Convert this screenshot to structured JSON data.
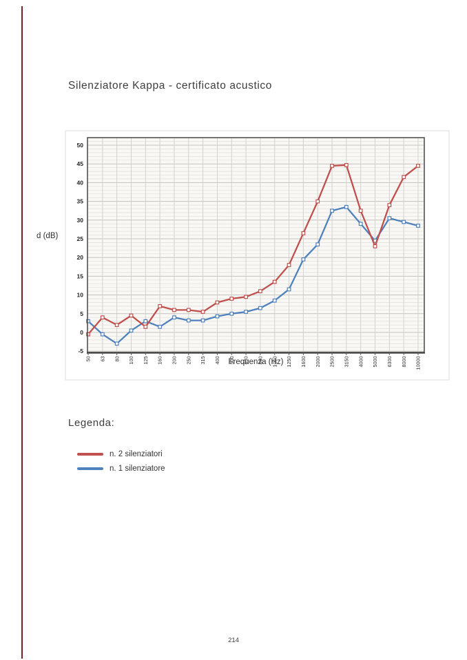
{
  "page": {
    "number": "214"
  },
  "document": {
    "title": "Silenziatore Kappa - certificato acustico",
    "legend_heading": "Legenda:"
  },
  "legend": {
    "items": [
      {
        "label": "n. 2 silenziatori",
        "color": "#c0504d"
      },
      {
        "label": "n. 1 silenziatore",
        "color": "#4f81bd"
      }
    ]
  },
  "accent": {
    "left_bar_color": "#7a1f1f"
  },
  "chart_data": {
    "type": "line",
    "title": "",
    "xlabel": "Frequenza (Hz)",
    "ylabel": "d (dB)",
    "ylim": [
      -5,
      50
    ],
    "y_ticks": [
      50,
      45,
      40,
      35,
      30,
      25,
      20,
      15,
      10,
      5,
      0,
      -5
    ],
    "grid": {
      "horizontal_minor_step": 1,
      "horizontal_major_step": 5,
      "vertical_per_category": true
    },
    "legend_position": "below chart in separate Legenda block",
    "marker": "open-square",
    "categories": [
      "50",
      "63",
      "80",
      "100",
      "125",
      "160",
      "200",
      "250",
      "315",
      "400",
      "500",
      "630",
      "800",
      "1000",
      "1250",
      "1600",
      "2000",
      "2500",
      "3150",
      "4000",
      "5000",
      "6300",
      "8000",
      "10000"
    ],
    "series": [
      {
        "name": "n. 2 silenziatori",
        "color": "#c0504d",
        "values": [
          -0.5,
          4,
          2,
          4.5,
          1.5,
          7,
          6,
          6,
          5.5,
          8,
          9,
          9.5,
          11,
          13.5,
          18,
          26.5,
          35,
          44.5,
          44.7,
          32.5,
          23,
          34,
          41.5,
          44.5
        ]
      },
      {
        "name": "n. 1 silenziatore",
        "color": "#4f81bd",
        "values": [
          3,
          -0.5,
          -3,
          0.5,
          3,
          1.5,
          4,
          3.2,
          3.2,
          4.3,
          5,
          5.5,
          6.5,
          8.5,
          11.5,
          19.5,
          23.5,
          32.5,
          33.5,
          29,
          24.5,
          30.5,
          29.5,
          28.5
        ]
      }
    ]
  }
}
